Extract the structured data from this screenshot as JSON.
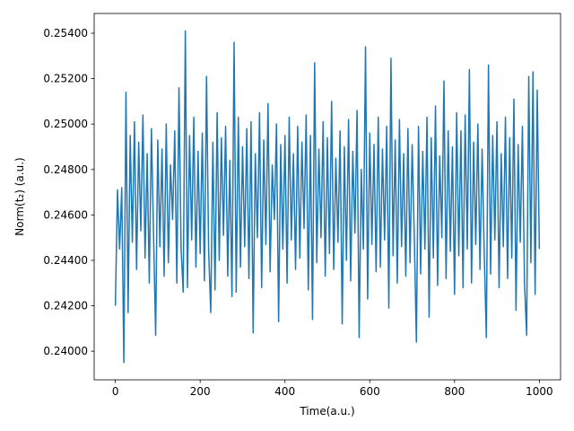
{
  "chart_data": {
    "type": "line",
    "x_label": "Time(a.u.)",
    "y_label": "Norm(t₂) (a.u.)",
    "xlim": [
      -50,
      1050
    ],
    "ylim": [
      0.23874,
      0.25487
    ],
    "xticks": [
      0,
      200,
      400,
      600,
      800,
      1000
    ],
    "yticks": [
      {
        "value": 0.24,
        "label": "0.24000"
      },
      {
        "value": 0.242,
        "label": "0.24200"
      },
      {
        "value": 0.244,
        "label": "0.24400"
      },
      {
        "value": 0.246,
        "label": "0.24600"
      },
      {
        "value": 0.248,
        "label": "0.24800"
      },
      {
        "value": 0.25,
        "label": "0.25000"
      },
      {
        "value": 0.252,
        "label": "0.25200"
      },
      {
        "value": 0.254,
        "label": "0.25400"
      }
    ],
    "grid": false,
    "x": [
      0,
      5,
      10,
      15,
      20,
      25,
      30,
      35,
      40,
      45,
      50,
      55,
      60,
      65,
      70,
      75,
      80,
      85,
      90,
      95,
      100,
      105,
      110,
      115,
      120,
      125,
      130,
      135,
      140,
      145,
      150,
      155,
      160,
      165,
      170,
      175,
      180,
      185,
      190,
      195,
      200,
      205,
      210,
      215,
      220,
      225,
      230,
      235,
      240,
      245,
      250,
      255,
      260,
      265,
      270,
      275,
      280,
      285,
      290,
      295,
      300,
      305,
      310,
      315,
      320,
      325,
      330,
      335,
      340,
      345,
      350,
      355,
      360,
      365,
      370,
      375,
      380,
      385,
      390,
      395,
      400,
      405,
      410,
      415,
      420,
      425,
      430,
      435,
      440,
      445,
      450,
      455,
      460,
      465,
      470,
      475,
      480,
      485,
      490,
      495,
      500,
      505,
      510,
      515,
      520,
      525,
      530,
      535,
      540,
      545,
      550,
      555,
      560,
      565,
      570,
      575,
      580,
      585,
      590,
      595,
      600,
      605,
      610,
      615,
      620,
      625,
      630,
      635,
      640,
      645,
      650,
      655,
      660,
      665,
      670,
      675,
      680,
      685,
      690,
      695,
      700,
      705,
      710,
      715,
      720,
      725,
      730,
      735,
      740,
      745,
      750,
      755,
      760,
      765,
      770,
      775,
      780,
      785,
      790,
      795,
      800,
      805,
      810,
      815,
      820,
      825,
      830,
      835,
      840,
      845,
      850,
      855,
      860,
      865,
      870,
      875,
      880,
      885,
      890,
      895,
      900,
      905,
      910,
      915,
      920,
      925,
      930,
      935,
      940,
      945,
      950,
      955,
      960,
      965,
      970,
      975,
      980,
      985,
      990,
      995,
      1000
    ],
    "series": [
      {
        "color": "#1f77b4",
        "values": [
          0.242,
          0.2471,
          0.2445,
          0.2472,
          0.2395,
          0.2514,
          0.2417,
          0.2495,
          0.2448,
          0.2501,
          0.2436,
          0.2492,
          0.2453,
          0.2504,
          0.2441,
          0.2487,
          0.243,
          0.2498,
          0.2452,
          0.2407,
          0.2493,
          0.2446,
          0.2489,
          0.2433,
          0.25,
          0.2439,
          0.2482,
          0.2458,
          0.2497,
          0.243,
          0.2516,
          0.2445,
          0.2426,
          0.2541,
          0.2428,
          0.2495,
          0.2449,
          0.2503,
          0.2437,
          0.2488,
          0.2443,
          0.2496,
          0.2431,
          0.2521,
          0.2444,
          0.2417,
          0.2492,
          0.2427,
          0.2505,
          0.244,
          0.2494,
          0.2451,
          0.2499,
          0.2433,
          0.2484,
          0.2424,
          0.2536,
          0.2426,
          0.2503,
          0.2437,
          0.249,
          0.2446,
          0.2498,
          0.2432,
          0.2501,
          0.2408,
          0.2487,
          0.245,
          0.2505,
          0.2428,
          0.2493,
          0.2447,
          0.2509,
          0.2435,
          0.2482,
          0.2458,
          0.25,
          0.2413,
          0.2491,
          0.2445,
          0.2495,
          0.243,
          0.2503,
          0.2449,
          0.2487,
          0.2436,
          0.2499,
          0.2441,
          0.2492,
          0.2454,
          0.2504,
          0.2427,
          0.2495,
          0.2414,
          0.2527,
          0.2439,
          0.2489,
          0.245,
          0.2501,
          0.2433,
          0.2494,
          0.2443,
          0.251,
          0.2436,
          0.2485,
          0.2448,
          0.2497,
          0.2412,
          0.249,
          0.244,
          0.2502,
          0.2431,
          0.2488,
          0.2452,
          0.2506,
          0.2406,
          0.248,
          0.2445,
          0.2534,
          0.2423,
          0.2496,
          0.2447,
          0.2491,
          0.2435,
          0.2503,
          0.2437,
          0.2489,
          0.2449,
          0.2499,
          0.2419,
          0.2529,
          0.2442,
          0.2493,
          0.243,
          0.2502,
          0.2446,
          0.2487,
          0.2433,
          0.2498,
          0.2439,
          0.2491,
          0.2451,
          0.2404,
          0.2499,
          0.2434,
          0.2488,
          0.2445,
          0.2503,
          0.2415,
          0.2494,
          0.2441,
          0.2508,
          0.2429,
          0.2486,
          0.245,
          0.2519,
          0.2432,
          0.2497,
          0.2444,
          0.249,
          0.2425,
          0.2505,
          0.2442,
          0.2497,
          0.2428,
          0.2504,
          0.2445,
          0.2524,
          0.243,
          0.2492,
          0.2447,
          0.25,
          0.2436,
          0.2489,
          0.2443,
          0.2406,
          0.2526,
          0.2434,
          0.2495,
          0.2449,
          0.2501,
          0.2428,
          0.2487,
          0.2446,
          0.2503,
          0.2432,
          0.2494,
          0.2441,
          0.2511,
          0.2418,
          0.2491,
          0.2448,
          0.2499,
          0.243,
          0.2407,
          0.2521,
          0.2439,
          0.2523,
          0.2425,
          0.2515,
          0.2445
        ]
      }
    ]
  }
}
